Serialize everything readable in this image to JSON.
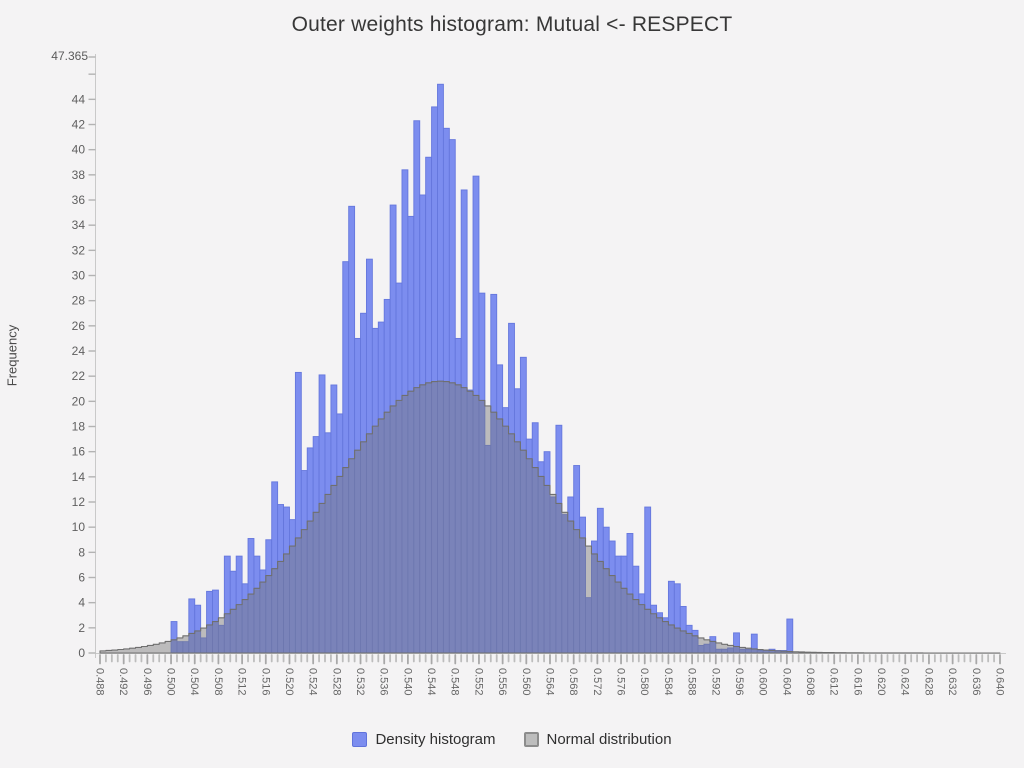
{
  "title": "Outer weights histogram: Mutual <- RESPECT",
  "y_axis": {
    "label": "Frequency",
    "max_label": "47.365",
    "max_value": 47.365,
    "tick_step": 2,
    "last_even_tick": 46,
    "last_labeled_tick": 44
  },
  "x_axis": {
    "min": 0.488,
    "max": 0.64,
    "minor_tick_step": 0.001,
    "label_step": 0.004,
    "labels": [
      "0.488",
      "0.492",
      "0.496",
      "0.500",
      "0.504",
      "0.508",
      "0.512",
      "0.516",
      "0.520",
      "0.524",
      "0.528",
      "0.532",
      "0.536",
      "0.540",
      "0.544",
      "0.548",
      "0.552",
      "0.556",
      "0.560",
      "0.564",
      "0.568",
      "0.572",
      "0.576",
      "0.580",
      "0.584",
      "0.588",
      "0.592",
      "0.596",
      "0.600",
      "0.604",
      "0.608",
      "0.612",
      "0.616",
      "0.620",
      "0.624",
      "0.628",
      "0.632",
      "0.636",
      "0.640"
    ]
  },
  "legend": {
    "histogram_label": "Density histogram",
    "normal_label": "Normal distribution"
  },
  "colors": {
    "background": "#f4f3f4",
    "bar_fill": "#7c8def",
    "bar_stroke": "#6577dd",
    "normal_fill_rgba": "rgba(120,120,120,0.45)",
    "normal_stroke": "#6f6f6f",
    "axis_line": "#c9c9c9",
    "tick": "#b3b3b3",
    "tick_label": "#5f5f5f"
  },
  "chart_data": {
    "type": "bar",
    "kind": "density histogram with normal distribution overlay",
    "title": "Outer weights histogram: Mutual <- RESPECT",
    "xlabel": "",
    "ylabel": "Frequency",
    "xlim": [
      0.488,
      0.64
    ],
    "ylim": [
      0,
      47.365
    ],
    "grid": false,
    "legend_position": "bottom-center",
    "bin_width": 0.001,
    "first_bin_start": 0.5,
    "frequencies": [
      2.5,
      0.9,
      0.9,
      4.3,
      3.8,
      1.2,
      4.9,
      5.0,
      2.2,
      7.7,
      6.5,
      7.7,
      5.5,
      9.1,
      7.7,
      6.6,
      9.0,
      13.6,
      11.8,
      11.6,
      10.6,
      22.3,
      14.5,
      16.3,
      17.2,
      22.1,
      17.5,
      21.3,
      19.0,
      31.1,
      35.5,
      25.0,
      27.0,
      31.3,
      25.8,
      26.3,
      28.1,
      35.6,
      29.4,
      38.4,
      34.7,
      42.3,
      36.4,
      39.4,
      43.4,
      45.2,
      41.7,
      40.8,
      25.0,
      36.8,
      20.9,
      37.9,
      28.6,
      16.5,
      28.5,
      22.9,
      19.5,
      26.2,
      21.0,
      23.5,
      17.0,
      18.3,
      15.2,
      16.0,
      12.4,
      18.1,
      11.0,
      12.4,
      14.9,
      10.8,
      4.4,
      8.9,
      11.5,
      10.0,
      8.9,
      7.7,
      7.7,
      9.5,
      6.9,
      4.7,
      11.6,
      3.8,
      3.2,
      2.8,
      5.7,
      5.5,
      3.7,
      2.2,
      1.8,
      0.6,
      0.7,
      1.3,
      0.3,
      0.3,
      0.4,
      1.6,
      0.3,
      0.3,
      1.5,
      0.2,
      0.2,
      0.3,
      0.2,
      0.2,
      2.7
    ],
    "normal_curve": {
      "mean": 0.5455,
      "sigma": 0.0183,
      "peak": 21.6
    }
  }
}
